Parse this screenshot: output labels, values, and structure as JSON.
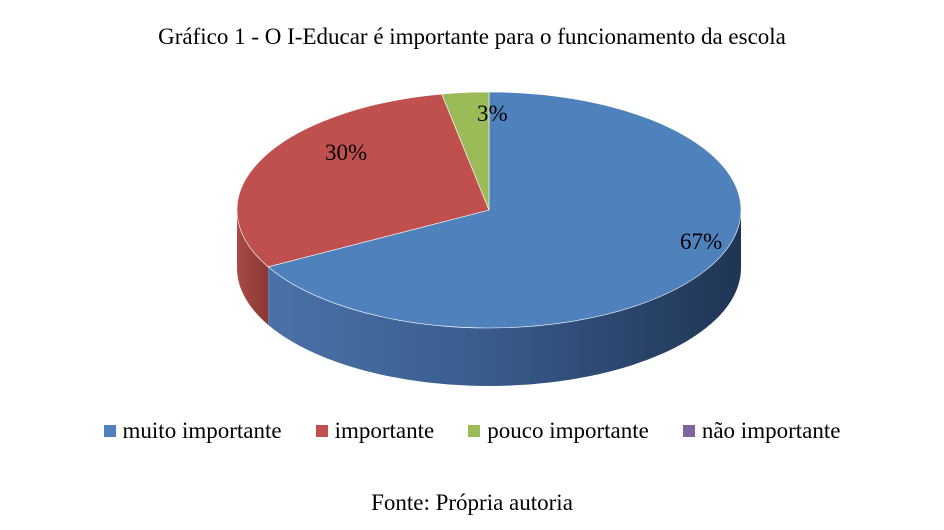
{
  "chart_data": {
    "type": "pie",
    "title": "Gráfico 1 - O I-Educar é importante para o funcionamento da escola",
    "categories": [
      "muito importante",
      "importante",
      "pouco importante",
      "não importante"
    ],
    "values": [
      67,
      30,
      3,
      0
    ],
    "data_labels": [
      "67%",
      "30%",
      "3%",
      ""
    ],
    "colors": [
      "#4F81BD",
      "#C0504D",
      "#9BBB59",
      "#8064A2"
    ],
    "legend_position": "bottom"
  },
  "source": "Fonte: Própria autoria"
}
